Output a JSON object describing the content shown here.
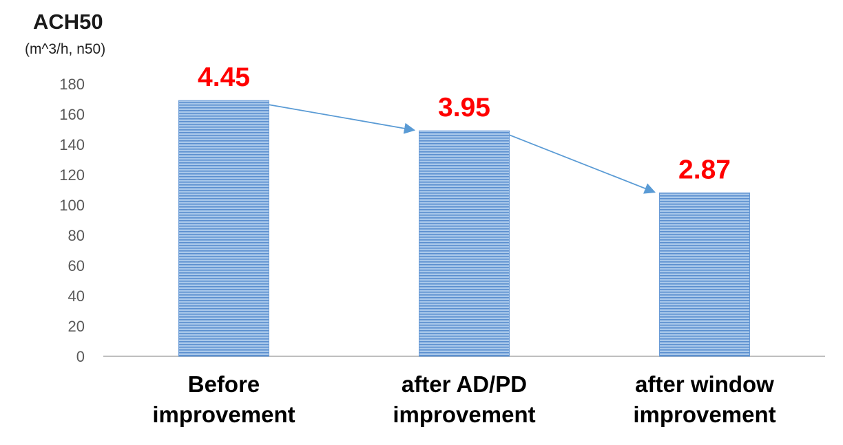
{
  "chart_data": {
    "type": "bar",
    "title": "",
    "ylabel": "ACH50",
    "ylabel_unit": "(m^3/h, n50)",
    "xlabel": "",
    "categories": [
      "Before improvement",
      "after AD/PD improvement",
      "after window improvement"
    ],
    "category_lines": [
      [
        "Before",
        "improvement"
      ],
      [
        "after  AD/PD",
        "improvement"
      ],
      [
        "after  window",
        "improvement"
      ]
    ],
    "values": [
      169,
      149,
      108
    ],
    "data_labels": [
      "4.45",
      "3.95",
      "2.87"
    ],
    "yticks": [
      0,
      20,
      40,
      60,
      80,
      100,
      120,
      140,
      160,
      180
    ],
    "ylim": [
      0,
      180
    ],
    "grid": false,
    "legend": "none",
    "trend_arrows": true
  },
  "colors": {
    "bar_fill": "#a9c8ea",
    "bar_stripe": "#5b8fcf",
    "data_label": "#ff0000",
    "arrow": "#5a9bd5",
    "axis": "#bfbfbf",
    "tick_text": "#595959",
    "category_text": "#000000"
  }
}
